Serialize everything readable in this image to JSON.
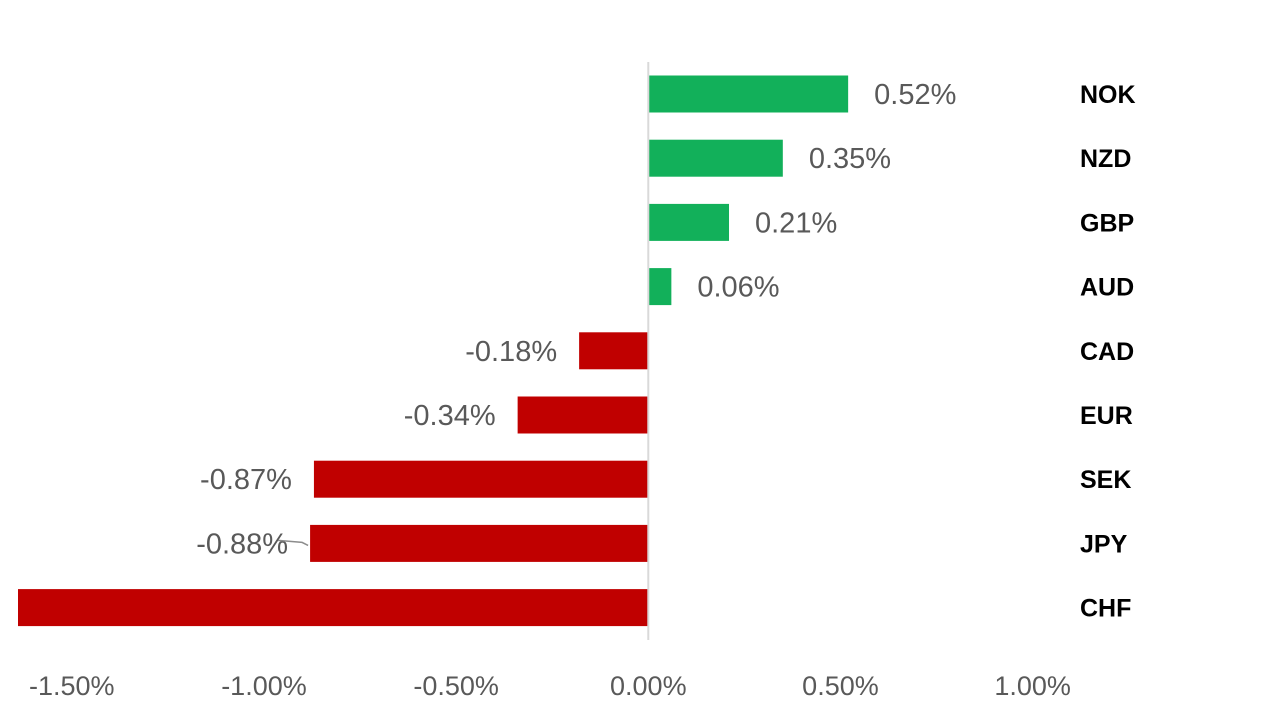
{
  "chart_data": {
    "type": "bar",
    "orientation": "horizontal",
    "categories": [
      "NOK",
      "NZD",
      "GBP",
      "AUD",
      "CAD",
      "EUR",
      "SEK",
      "JPY",
      "CHF"
    ],
    "values": [
      0.52,
      0.35,
      0.21,
      0.06,
      -0.18,
      -0.34,
      -0.87,
      -0.88,
      -1.64
    ],
    "value_labels": [
      "0.52%",
      "0.35%",
      "0.21%",
      "0.06%",
      "-0.18%",
      "-0.34%",
      "-0.87%",
      "-0.88%",
      ""
    ],
    "x_ticks": [
      -1.5,
      -1.0,
      -0.5,
      0.0,
      0.5,
      1.0
    ],
    "x_tick_labels": [
      "-1.50%",
      "-1.00%",
      "-0.50%",
      "0.00%",
      "0.50%",
      "1.00%"
    ],
    "xlim": [
      -1.64,
      1.04
    ],
    "title": "",
    "xlabel": "",
    "ylabel": "",
    "grid": false,
    "legend": "none",
    "colors": {
      "positive": "#12B05A",
      "negative": "#C00000",
      "axis": "#D9D9D9"
    }
  }
}
